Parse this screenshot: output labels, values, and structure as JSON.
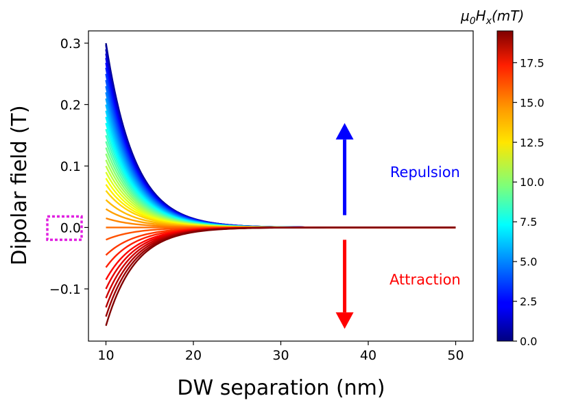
{
  "chart_data": {
    "type": "line",
    "title": "",
    "xlabel": "DW separation (nm)",
    "ylabel": "Dipolar field (T)",
    "xlim": [
      8,
      52
    ],
    "ylim": [
      -0.185,
      0.32
    ],
    "xticks": [
      10,
      20,
      30,
      40,
      50
    ],
    "xtick_labels": [
      "10",
      "20",
      "30",
      "40",
      "50"
    ],
    "yticks": [
      -0.1,
      0.0,
      0.1,
      0.2,
      0.3
    ],
    "ytick_labels": [
      "−0.1",
      "0.0",
      "0.1",
      "0.2",
      "0.3"
    ],
    "x_range": [
      10,
      50
    ],
    "colormap": "jet",
    "curve_family": {
      "description": "One curve per applied field mu0Hx, colored by colormap; field decays with DW separation",
      "hx_values_mT": [
        0.0,
        0.5,
        1.0,
        1.5,
        2.0,
        2.5,
        3.0,
        3.5,
        4.0,
        4.5,
        5.0,
        5.5,
        6.0,
        6.5,
        7.0,
        7.5,
        8.0,
        8.5,
        9.0,
        9.5,
        10.0,
        10.5,
        11.0,
        11.5,
        12.0,
        12.5,
        13.0,
        13.5,
        14.0,
        14.5,
        15.0,
        15.5,
        16.0,
        16.5,
        17.0,
        17.5,
        18.0,
        18.5,
        19.0,
        19.5
      ],
      "value_at_10nm_T": [
        0.3,
        0.297,
        0.29,
        0.283,
        0.276,
        0.268,
        0.26,
        0.25,
        0.24,
        0.23,
        0.22,
        0.21,
        0.2,
        0.19,
        0.18,
        0.17,
        0.16,
        0.15,
        0.14,
        0.13,
        0.12,
        0.11,
        0.1,
        0.09,
        0.08,
        0.07,
        0.06,
        0.045,
        0.03,
        0.015,
        0.0,
        -0.02,
        -0.045,
        -0.065,
        -0.085,
        -0.1,
        -0.115,
        -0.13,
        -0.145,
        -0.16
      ],
      "decay_length_nm": 3.3
    },
    "colorbar": {
      "label": "μ0Hx(mT)",
      "label_main": "μ",
      "label_sub1": "0",
      "label_mid": "H",
      "label_sub2": "x",
      "label_unit": "(mT)",
      "min": 0.0,
      "max": 19.5,
      "ticks": [
        0.0,
        2.5,
        5.0,
        7.5,
        10.0,
        12.5,
        15.0,
        17.5
      ],
      "tick_labels": [
        "0.0",
        "2.5",
        "5.0",
        "7.5",
        "10.0",
        "12.5",
        "15.0",
        "17.5"
      ]
    },
    "annotations": {
      "repulsion": "Repulsion",
      "attraction": "Attraction",
      "repulsion_color": "#0000ff",
      "attraction_color": "#ff0000",
      "arrow_x": 37.3,
      "repulsion_arrow_y": [
        0.02,
        0.17
      ],
      "attraction_arrow_y": [
        -0.02,
        -0.165
      ],
      "repulsion_label_pos": [
        46.5,
        0.09
      ],
      "attraction_label_pos": [
        46.5,
        -0.085
      ]
    },
    "highlight_box": {
      "target": "ytick 0.0",
      "color": "#e020e0",
      "style": "dotted"
    }
  }
}
